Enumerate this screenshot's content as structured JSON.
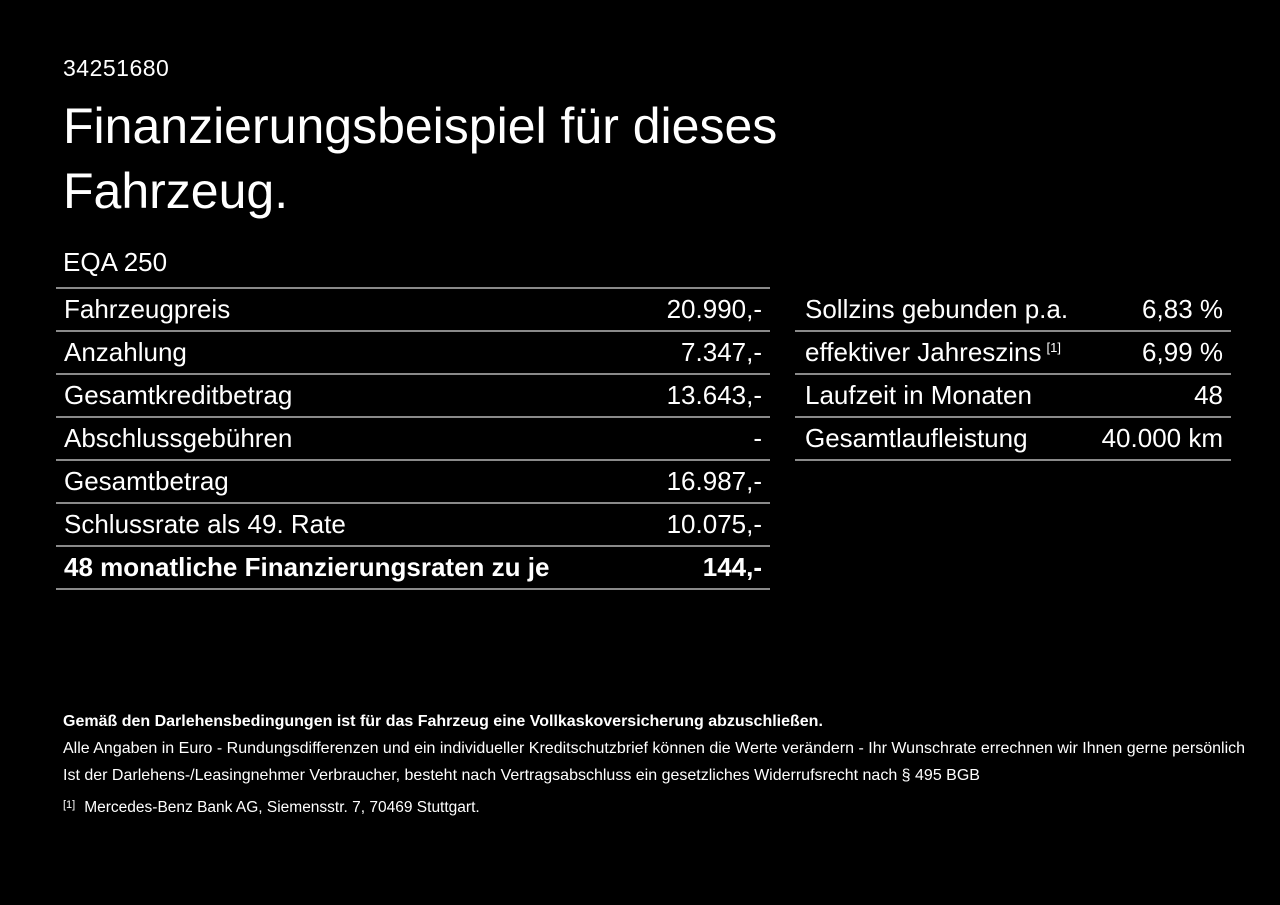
{
  "page": {
    "vehicle_id": "34251680",
    "title": "Finanzierungsbeispiel für dieses Fahrzeug.",
    "model": "EQA 250"
  },
  "financing_table": {
    "rows": [
      {
        "label": "Fahrzeugpreis",
        "value": "20.990,-"
      },
      {
        "label": "Anzahlung",
        "value": "7.347,-"
      },
      {
        "label": "Gesamtkreditbetrag",
        "value": "13.643,-"
      },
      {
        "label": "Abschlussgebühren",
        "value": "-"
      },
      {
        "label": "Gesamtbetrag",
        "value": "16.987,-"
      },
      {
        "label": "Schlussrate als 49. Rate",
        "value": "10.075,-"
      },
      {
        "label": "48 monatliche Finanzierungsraten zu je",
        "value": "144,-"
      }
    ]
  },
  "conditions_table": {
    "rows": [
      {
        "label": "Sollzins gebunden p.a.",
        "value": "6,83 %"
      },
      {
        "label": "effektiver Jahreszins",
        "footnote_marker": "[1]",
        "value": "6,99 %"
      },
      {
        "label": "Laufzeit in Monaten",
        "value": "48"
      },
      {
        "label": "Gesamtlaufleistung",
        "value": "40.000 km"
      }
    ]
  },
  "disclaimers": {
    "insurance_note": "Gemäß den Darlehensbedingungen ist für das Fahrzeug eine Vollkaskoversicherung abzuschließen.",
    "general_note": "Alle Angaben in Euro - Rundungsdifferenzen und ein individueller Kreditschutzbrief können die Werte verändern - Ihr Wunschrate errechnen wir Ihnen gerne persönlich",
    "withdrawal_note": "Ist der Darlehens-/Leasingnehmer Verbraucher, besteht nach Vertragsabschluss ein gesetzliches Widerrufsrecht nach § 495 BGB",
    "footnote_marker": "[1]",
    "footnote": "Mercedes-Benz Bank AG, Siemensstr. 7, 70469 Stuttgart."
  },
  "colors": {
    "background": "#000000",
    "text": "#ffffff",
    "divider": "#8a8a8a"
  }
}
